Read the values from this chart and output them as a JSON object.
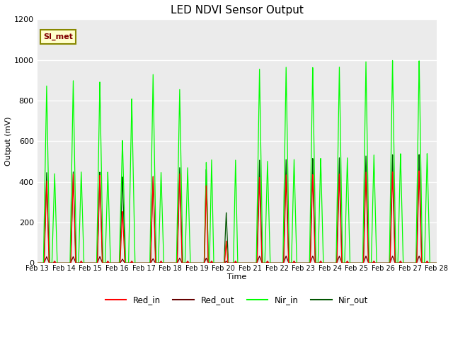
{
  "title": "LED NDVI Sensor Output",
  "xlabel": "Time",
  "ylabel": "Output (mV)",
  "ylim": [
    0,
    1200
  ],
  "bg_color": "#ebebeb",
  "legend_label": "SI_met",
  "legend_box_bg": "#ffffcc",
  "legend_box_border": "#888800",
  "series": {
    "Red_in": {
      "color": "#ff0000",
      "lw": 0.9
    },
    "Red_out": {
      "color": "#660000",
      "lw": 0.9
    },
    "Nir_in": {
      "color": "#00ff00",
      "lw": 0.9
    },
    "Nir_out": {
      "color": "#005500",
      "lw": 0.9
    }
  },
  "day_labels": [
    "Feb 13",
    "Feb 14",
    "Feb 15",
    "Feb 16",
    "Feb 17",
    "Feb 18",
    "Feb 19",
    "Feb 20",
    "Feb 21",
    "Feb 22",
    "Feb 23",
    "Feb 24",
    "Feb 25",
    "Feb 26",
    "Feb 27",
    "Feb 28"
  ],
  "spike_centers": [
    13.35,
    13.65,
    14.35,
    14.65,
    15.35,
    15.65,
    16.2,
    16.55,
    17.35,
    17.65,
    18.35,
    18.65,
    19.35,
    19.55,
    20.1,
    20.45,
    21.35,
    21.65,
    22.35,
    22.65,
    23.35,
    23.65,
    24.35,
    24.65,
    25.35,
    25.65,
    26.35,
    26.65,
    27.35,
    27.65
  ],
  "peaks_nir_in": [
    880,
    445,
    900,
    450,
    895,
    450,
    610,
    810,
    935,
    450,
    855,
    470,
    500,
    510,
    105,
    510,
    960,
    505,
    965,
    510,
    970,
    520,
    975,
    525,
    995,
    535,
    1000,
    540,
    1005,
    545
  ],
  "peaks_nir_out": [
    450,
    10,
    450,
    10,
    450,
    10,
    430,
    10,
    430,
    10,
    470,
    10,
    465,
    10,
    250,
    10,
    510,
    10,
    510,
    10,
    520,
    10,
    525,
    10,
    530,
    10,
    535,
    10,
    540,
    10
  ],
  "peaks_red_in": [
    410,
    10,
    440,
    10,
    435,
    10,
    258,
    10,
    430,
    10,
    440,
    10,
    385,
    10,
    110,
    10,
    425,
    10,
    435,
    10,
    440,
    10,
    445,
    10,
    450,
    10,
    450,
    10,
    460,
    10
  ],
  "peaks_red_out": [
    32,
    5,
    32,
    5,
    32,
    5,
    20,
    5,
    22,
    5,
    25,
    5,
    25,
    5,
    10,
    5,
    35,
    5,
    35,
    5,
    35,
    5,
    35,
    5,
    35,
    5,
    35,
    5,
    35,
    5
  ],
  "nir_in_widths": [
    0.12,
    0.1,
    0.12,
    0.1,
    0.12,
    0.1,
    0.12,
    0.12,
    0.12,
    0.1,
    0.12,
    0.1,
    0.08,
    0.08,
    0.08,
    0.08,
    0.12,
    0.1,
    0.12,
    0.1,
    0.12,
    0.1,
    0.12,
    0.1,
    0.12,
    0.1,
    0.12,
    0.1,
    0.12,
    0.1
  ],
  "nir_out_widths": [
    0.1,
    0.05,
    0.1,
    0.05,
    0.1,
    0.05,
    0.1,
    0.05,
    0.1,
    0.05,
    0.1,
    0.05,
    0.08,
    0.05,
    0.08,
    0.05,
    0.1,
    0.05,
    0.1,
    0.05,
    0.1,
    0.05,
    0.1,
    0.05,
    0.1,
    0.05,
    0.1,
    0.05,
    0.1,
    0.05
  ],
  "red_in_widths": [
    0.09,
    0.04,
    0.09,
    0.04,
    0.09,
    0.04,
    0.09,
    0.04,
    0.09,
    0.04,
    0.09,
    0.04,
    0.07,
    0.04,
    0.06,
    0.04,
    0.09,
    0.04,
    0.09,
    0.04,
    0.09,
    0.04,
    0.09,
    0.04,
    0.09,
    0.04,
    0.09,
    0.04,
    0.09,
    0.04
  ],
  "red_out_widths": [
    0.1,
    0.04,
    0.1,
    0.04,
    0.1,
    0.04,
    0.09,
    0.04,
    0.09,
    0.04,
    0.09,
    0.04,
    0.08,
    0.04,
    0.06,
    0.04,
    0.1,
    0.04,
    0.1,
    0.04,
    0.1,
    0.04,
    0.1,
    0.04,
    0.1,
    0.04,
    0.1,
    0.04,
    0.1,
    0.04
  ]
}
